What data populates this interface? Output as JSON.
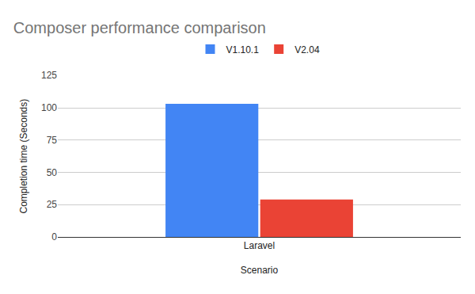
{
  "chart_data": {
    "type": "bar",
    "title": "Composer performance comparison",
    "x_label": "Scenario",
    "y_label": "Completion time (Seconds)",
    "categories": [
      "Laravel"
    ],
    "series": [
      {
        "name": "V1.10.1",
        "color": "#4285f4",
        "values": [
          103
        ]
      },
      {
        "name": "V2.04",
        "color": "#ea4335",
        "values": [
          29
        ]
      }
    ],
    "ylim": [
      0,
      125
    ],
    "yticks": [
      0,
      25,
      50,
      75,
      100,
      125
    ],
    "grid": true,
    "legend": "top"
  }
}
